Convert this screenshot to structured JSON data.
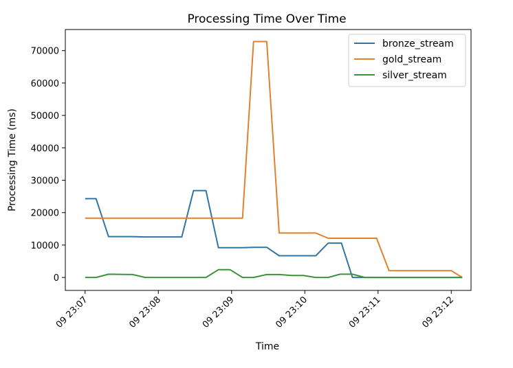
{
  "chart_data": {
    "type": "line",
    "title": "Processing Time Over Time",
    "xlabel": "Time",
    "ylabel": "Processing Time (ms)",
    "x_ticks": [
      "09 23:07",
      "09 23:08",
      "09 23:09",
      "09 23:10",
      "09 23:11",
      "09 23:12"
    ],
    "y_ticks": [
      "0",
      "10000",
      "20000",
      "30000",
      "40000",
      "50000",
      "60000",
      "70000"
    ],
    "ylim": [
      -4000,
      76500
    ],
    "xlim_minutes": [
      -0.27,
      5.27
    ],
    "grid": false,
    "legend_position": "top-right",
    "series": [
      {
        "name": "bronze_stream",
        "color": "#3274a1",
        "points": [
          [
            0.0,
            24300
          ],
          [
            0.15,
            24300
          ],
          [
            0.32,
            12600
          ],
          [
            0.65,
            12600
          ],
          [
            0.8,
            12500
          ],
          [
            1.0,
            12500
          ],
          [
            1.32,
            12500
          ],
          [
            1.48,
            26800
          ],
          [
            1.65,
            26800
          ],
          [
            1.82,
            9200
          ],
          [
            2.15,
            9200
          ],
          [
            2.3,
            9300
          ],
          [
            2.48,
            9300
          ],
          [
            2.65,
            6700
          ],
          [
            2.98,
            6700
          ],
          [
            3.15,
            6700
          ],
          [
            3.32,
            10600
          ],
          [
            3.5,
            10600
          ],
          [
            3.65,
            0
          ],
          [
            3.82,
            0
          ],
          [
            4.15,
            0
          ],
          [
            4.5,
            0
          ],
          [
            4.83,
            0
          ],
          [
            5.15,
            0
          ]
        ]
      },
      {
        "name": "gold_stream",
        "color": "#e1812c",
        "points": [
          [
            0.0,
            18300
          ],
          [
            0.5,
            18300
          ],
          [
            1.0,
            18300
          ],
          [
            1.5,
            18300
          ],
          [
            2.0,
            18300
          ],
          [
            2.15,
            18300
          ],
          [
            2.3,
            72800
          ],
          [
            2.48,
            72800
          ],
          [
            2.65,
            13700
          ],
          [
            3.0,
            13700
          ],
          [
            3.15,
            13700
          ],
          [
            3.32,
            12100
          ],
          [
            3.65,
            12100
          ],
          [
            3.98,
            12100
          ],
          [
            4.15,
            2100
          ],
          [
            4.5,
            2100
          ],
          [
            4.83,
            2100
          ],
          [
            5.0,
            2100
          ],
          [
            5.15,
            0
          ]
        ]
      },
      {
        "name": "silver_stream",
        "color": "#3a923a",
        "points": [
          [
            0.0,
            0
          ],
          [
            0.15,
            0
          ],
          [
            0.32,
            1000
          ],
          [
            0.65,
            900
          ],
          [
            0.82,
            0
          ],
          [
            1.0,
            0
          ],
          [
            1.32,
            0
          ],
          [
            1.65,
            0
          ],
          [
            1.82,
            2400
          ],
          [
            1.98,
            2400
          ],
          [
            2.15,
            0
          ],
          [
            2.3,
            0
          ],
          [
            2.48,
            900
          ],
          [
            2.65,
            900
          ],
          [
            2.82,
            600
          ],
          [
            2.98,
            600
          ],
          [
            3.15,
            0
          ],
          [
            3.32,
            0
          ],
          [
            3.48,
            1000
          ],
          [
            3.65,
            1000
          ],
          [
            3.82,
            0
          ],
          [
            4.15,
            0
          ],
          [
            4.5,
            0
          ],
          [
            4.83,
            0
          ],
          [
            5.15,
            0
          ]
        ]
      }
    ]
  }
}
